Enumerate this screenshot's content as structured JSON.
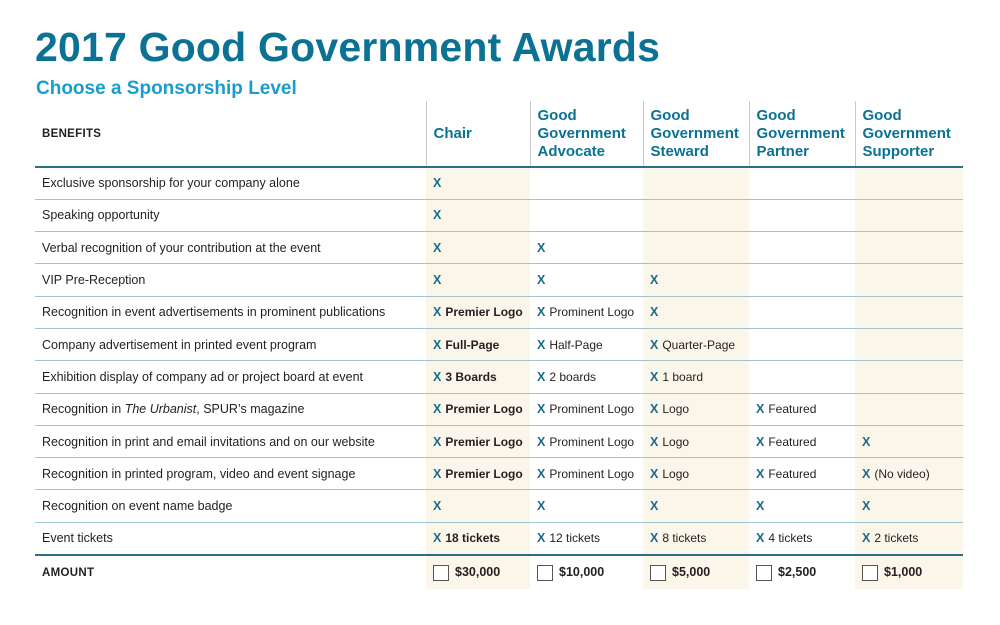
{
  "title": "2017 Good Government Awards",
  "subtitle": "Choose a Sponsorship Level",
  "headers": {
    "benefits": "BENEFITS",
    "levels": [
      "Chair",
      "Good Government Advocate",
      "Good Government Steward",
      "Good Government Partner",
      "Good Government Supporter"
    ]
  },
  "mark": "X",
  "rows": [
    {
      "benefit": "Exclusive sponsorship for your company alone",
      "cells": [
        {
          "x": true,
          "text": ""
        },
        {
          "x": false,
          "text": ""
        },
        {
          "x": false,
          "text": ""
        },
        {
          "x": false,
          "text": ""
        },
        {
          "x": false,
          "text": ""
        }
      ]
    },
    {
      "benefit": "Speaking opportunity",
      "cells": [
        {
          "x": true,
          "text": ""
        },
        {
          "x": false,
          "text": ""
        },
        {
          "x": false,
          "text": ""
        },
        {
          "x": false,
          "text": ""
        },
        {
          "x": false,
          "text": ""
        }
      ]
    },
    {
      "benefit": "Verbal recognition of your contribution at the event",
      "cells": [
        {
          "x": true,
          "text": ""
        },
        {
          "x": true,
          "text": ""
        },
        {
          "x": false,
          "text": ""
        },
        {
          "x": false,
          "text": ""
        },
        {
          "x": false,
          "text": ""
        }
      ]
    },
    {
      "benefit": "VIP Pre-Reception",
      "cells": [
        {
          "x": true,
          "text": ""
        },
        {
          "x": true,
          "text": ""
        },
        {
          "x": true,
          "text": ""
        },
        {
          "x": false,
          "text": ""
        },
        {
          "x": false,
          "text": ""
        }
      ]
    },
    {
      "benefit": "Recognition in event advertisements in prominent publications",
      "cells": [
        {
          "x": true,
          "text": "Premier Logo"
        },
        {
          "x": true,
          "text": "Prominent Logo"
        },
        {
          "x": true,
          "text": ""
        },
        {
          "x": false,
          "text": ""
        },
        {
          "x": false,
          "text": ""
        }
      ]
    },
    {
      "benefit": "Company advertisement in printed event program",
      "cells": [
        {
          "x": true,
          "text": "Full-Page"
        },
        {
          "x": true,
          "text": "Half-Page"
        },
        {
          "x": true,
          "text": "Quarter-Page"
        },
        {
          "x": false,
          "text": ""
        },
        {
          "x": false,
          "text": ""
        }
      ]
    },
    {
      "benefit": "Exhibition display of company ad or project board at event",
      "cells": [
        {
          "x": true,
          "text": "3 Boards"
        },
        {
          "x": true,
          "text": "2 boards"
        },
        {
          "x": true,
          "text": "1 board"
        },
        {
          "x": false,
          "text": ""
        },
        {
          "x": false,
          "text": ""
        }
      ]
    },
    {
      "benefit": "Recognition in The Urbanist, SPUR’s magazine",
      "benefit_pre": "Recognition in ",
      "benefit_em": "The Urbanist",
      "benefit_post": ", SPUR’s magazine",
      "cells": [
        {
          "x": true,
          "text": "Premier Logo"
        },
        {
          "x": true,
          "text": "Prominent Logo"
        },
        {
          "x": true,
          "text": "Logo"
        },
        {
          "x": true,
          "text": "Featured"
        },
        {
          "x": false,
          "text": ""
        }
      ]
    },
    {
      "benefit": "Recognition in print and email invitations and on our website",
      "cells": [
        {
          "x": true,
          "text": "Premier Logo"
        },
        {
          "x": true,
          "text": "Prominent Logo"
        },
        {
          "x": true,
          "text": "Logo"
        },
        {
          "x": true,
          "text": "Featured"
        },
        {
          "x": true,
          "text": ""
        }
      ]
    },
    {
      "benefit": "Recognition in printed program, video and event signage",
      "cells": [
        {
          "x": true,
          "text": "Premier Logo"
        },
        {
          "x": true,
          "text": "Prominent Logo"
        },
        {
          "x": true,
          "text": "Logo"
        },
        {
          "x": true,
          "text": "Featured"
        },
        {
          "x": true,
          "text": "(No video)"
        }
      ]
    },
    {
      "benefit": "Recognition on event name badge",
      "cells": [
        {
          "x": true,
          "text": ""
        },
        {
          "x": true,
          "text": ""
        },
        {
          "x": true,
          "text": ""
        },
        {
          "x": true,
          "text": ""
        },
        {
          "x": true,
          "text": ""
        }
      ]
    },
    {
      "benefit": "Event tickets",
      "cells": [
        {
          "x": true,
          "text": "18 tickets"
        },
        {
          "x": true,
          "text": "12 tickets"
        },
        {
          "x": true,
          "text": "8 tickets"
        },
        {
          "x": true,
          "text": "4 tickets"
        },
        {
          "x": true,
          "text": "2 tickets"
        }
      ]
    }
  ],
  "amount": {
    "label": "AMOUNT",
    "values": [
      "$30,000",
      "$10,000",
      "$5,000",
      "$2,500",
      "$1,000"
    ]
  },
  "colors": {
    "title": "#0b7294",
    "subtitle": "#1c9ccc",
    "mark": "#1b6a8a",
    "shade": "#fbf6ea"
  }
}
